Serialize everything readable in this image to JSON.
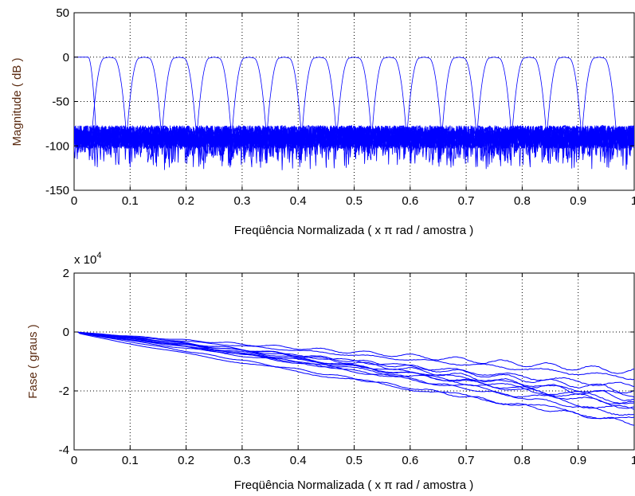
{
  "chart_data": [
    {
      "type": "line",
      "xlabel": "Freqüência Normalizada ( x π rad / amostra )",
      "ylabel": "Magnitude ( dB )",
      "xlim": [
        0,
        1
      ],
      "ylim": [
        -150,
        50
      ],
      "xticks": [
        "0",
        "0.1",
        "0.2",
        "0.3",
        "0.4",
        "0.5",
        "0.6",
        "0.7",
        "0.8",
        "0.9",
        "1"
      ],
      "yticks": [
        "50",
        "0",
        "-50",
        "-100",
        "-150"
      ],
      "grid": true,
      "line_color": "#0000ff",
      "band_count": 16,
      "passband_level": 0,
      "stopband_level": -90,
      "band_centers": [
        0.0,
        0.0625,
        0.125,
        0.1875,
        0.25,
        0.3125,
        0.375,
        0.4375,
        0.5,
        0.5625,
        0.625,
        0.6875,
        0.75,
        0.8125,
        0.875,
        0.9375
      ]
    },
    {
      "type": "line",
      "xlabel": "Freqüência Normalizada ( x π rad / amostra )",
      "ylabel": "Fase ( graus )",
      "multiplier": "x 10",
      "multiplier_exp": "4",
      "xlim": [
        0,
        1
      ],
      "ylim": [
        -4,
        2
      ],
      "xticks": [
        "0",
        "0.1",
        "0.2",
        "0.3",
        "0.4",
        "0.5",
        "0.6",
        "0.7",
        "0.8",
        "0.9",
        "1"
      ],
      "yticks": [
        "2",
        "0",
        "-2",
        "-4"
      ],
      "grid": true,
      "line_color": "#0000ff",
      "end_values": [
        -1.35,
        -1.55,
        -1.85,
        -2.0,
        -2.15,
        -2.25,
        -2.35,
        -2.45,
        -2.55,
        -2.7,
        -2.85,
        -3.0,
        -3.1
      ]
    }
  ]
}
